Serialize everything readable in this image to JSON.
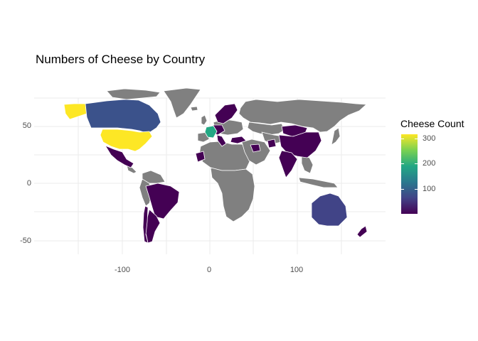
{
  "chart_data": {
    "type": "map",
    "title": "Numbers of Cheese by Country",
    "xlabel": "",
    "ylabel": "",
    "x_ticks": [
      "-100",
      "0",
      "100"
    ],
    "y_ticks": [
      "50",
      "0",
      "-50"
    ],
    "xlim": [
      -180,
      190
    ],
    "ylim": [
      -60,
      85
    ],
    "grid": true,
    "no_data_color": "#808080",
    "legend": {
      "title": "Cheese Count",
      "placement": "right",
      "ticks": [
        "300",
        "200",
        "100"
      ],
      "range": [
        1,
        320
      ],
      "palette": "viridis"
    },
    "countries": [
      {
        "name": "United States",
        "value": 320,
        "color": "#fde725"
      },
      {
        "name": "France",
        "value": 180,
        "color": "#22a884"
      },
      {
        "name": "Canada",
        "value": 85,
        "color": "#3b528b"
      },
      {
        "name": "Australia",
        "value": 50,
        "color": "#414487"
      },
      {
        "name": "Mexico",
        "value": 10,
        "color": "#440154"
      },
      {
        "name": "Brazil",
        "value": 5,
        "color": "#440154"
      },
      {
        "name": "Argentina",
        "value": 5,
        "color": "#440154"
      },
      {
        "name": "China",
        "value": 4,
        "color": "#440154"
      },
      {
        "name": "India",
        "value": 5,
        "color": "#440154"
      },
      {
        "name": "Germany",
        "value": 10,
        "color": "#440154"
      },
      {
        "name": "Scandinavia",
        "value": 8,
        "color": "#440154"
      },
      {
        "name": "Mongolia",
        "value": 3,
        "color": "#440154"
      }
    ]
  }
}
